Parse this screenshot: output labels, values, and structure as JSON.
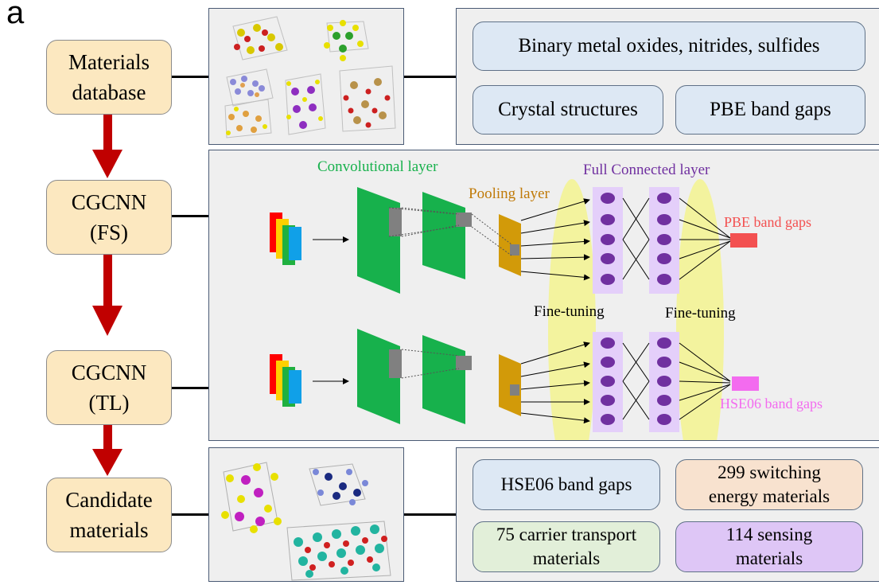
{
  "panel_label": "a",
  "workflow": {
    "steps": [
      "Materials\ndatabase",
      "CGCNN\n(FS)",
      "CGCNN\n(TL)",
      "Candidate\nmaterials"
    ]
  },
  "database_panel": {
    "top_item": "Binary metal oxides, nitrides, sulfides",
    "left_item": "Crystal structures",
    "right_item": "PBE band gaps"
  },
  "network": {
    "conv_label": "Convolutional layer",
    "pool_label": "Pooling layer",
    "fc_label": "Full Connected layer",
    "fine_tuning_left": "Fine-tuning",
    "fine_tuning_right": "Fine-tuning",
    "output_top": "PBE band gaps",
    "output_bottom": "HSE06 band gaps",
    "colors": {
      "conv": "#17b14c",
      "pool": "#d29a09",
      "fc_column": "#e4cffa",
      "neuron": "#7030a0",
      "fine_tune": "#f3f39e",
      "output_top": "#f35050",
      "output_bottom": "#f36bef",
      "arrow": "#c00000"
    }
  },
  "results_panel": {
    "items": [
      "HSE06 band gaps",
      "299 switching\nenergy materials",
      "75 carrier transport\nmaterials",
      "114 sensing\nmaterials"
    ]
  }
}
